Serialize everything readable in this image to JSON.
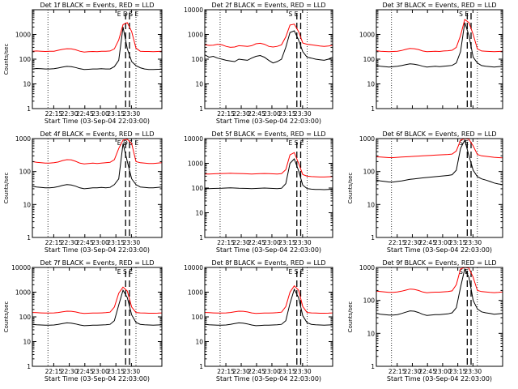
{
  "page": {
    "background": "#ffffff"
  },
  "colors": {
    "events": "#000000",
    "lld": "#ff0000",
    "axis": "#000000"
  },
  "chart_data": [
    {
      "type": "line",
      "title": "Det 1f BLACK = Events, RED = LLD",
      "xlabel": "Start Time (03-Sep-04 22:03:00)",
      "ylabel": "Counts/sec",
      "yscale": "log",
      "ylim": [
        1,
        10000
      ],
      "xlim": [
        0,
        1000
      ],
      "xtick_labels": [
        "22:15",
        "22:30",
        "22:45",
        "23:00",
        "23:15",
        "23:30"
      ],
      "ytick_labels": [
        "1",
        "10",
        "100",
        "1000"
      ],
      "markers": [
        "E",
        "D",
        "S",
        "E"
      ],
      "grid": false,
      "series": [
        {
          "name": "BLACK = Events",
          "color": "#000000",
          "values": [
            40,
            42,
            41,
            40,
            40,
            41,
            44,
            48,
            51,
            50,
            46,
            41,
            38,
            39,
            40,
            40,
            41,
            40,
            40,
            50,
            90,
            2000,
            260,
            80,
            55,
            45,
            40,
            38,
            38,
            39,
            39
          ]
        },
        {
          "name": "RED = LLD",
          "color": "#ff0000",
          "values": [
            210,
            215,
            210,
            205,
            210,
            210,
            230,
            250,
            265,
            260,
            240,
            210,
            195,
            200,
            205,
            200,
            210,
            210,
            215,
            260,
            600,
            2500,
            3000,
            1300,
            280,
            210,
            205,
            205,
            200,
            205,
            210
          ]
        }
      ]
    },
    {
      "type": "line",
      "title": "Det 2f BLACK = Events, RED = LLD",
      "xlabel": "Start Time (03-Sep-04 22:03:00)",
      "ylabel": "",
      "yscale": "log",
      "ylim": [
        1,
        10000
      ],
      "xlim": [
        0,
        1000
      ],
      "xtick_labels": [
        "22:15",
        "22:30",
        "22:45",
        "23:00",
        "23:15",
        "23:30"
      ],
      "ytick_labels": [
        "1",
        "10",
        "100",
        "1000",
        "10000"
      ],
      "markers": [
        "S",
        "E"
      ],
      "grid": false,
      "series": [
        {
          "name": "BLACK = Events",
          "color": "#000000",
          "values": [
            150,
            120,
            130,
            110,
            100,
            90,
            85,
            80,
            100,
            95,
            90,
            110,
            130,
            140,
            120,
            90,
            70,
            80,
            100,
            300,
            1200,
            1400,
            600,
            200,
            120,
            110,
            100,
            95,
            90,
            100,
            120
          ]
        },
        {
          "name": "RED = LLD",
          "color": "#ff0000",
          "values": [
            380,
            360,
            370,
            400,
            380,
            330,
            300,
            310,
            350,
            340,
            330,
            350,
            420,
            440,
            400,
            330,
            310,
            330,
            380,
            800,
            2400,
            2600,
            1300,
            450,
            400,
            380,
            360,
            340,
            330,
            340,
            360
          ]
        }
      ]
    },
    {
      "type": "line",
      "title": "Det 3f BLACK = Events, RED = LLD",
      "xlabel": "",
      "ylabel": "",
      "yscale": "log",
      "ylim": [
        1,
        10000
      ],
      "xlim": [
        0,
        1000
      ],
      "xtick_labels": [],
      "ytick_labels": [
        "1",
        "10",
        "100",
        "1000"
      ],
      "markers": [
        "S",
        "E"
      ],
      "grid": false,
      "series": [
        {
          "name": "BLACK = Events",
          "color": "#000000",
          "values": [
            55,
            52,
            50,
            48,
            50,
            52,
            55,
            60,
            65,
            62,
            58,
            52,
            48,
            50,
            52,
            50,
            52,
            54,
            56,
            70,
            200,
            3000,
            900,
            120,
            70,
            55,
            52,
            50,
            48,
            50,
            52
          ]
        },
        {
          "name": "RED = LLD",
          "color": "#ff0000",
          "values": [
            220,
            210,
            205,
            200,
            205,
            210,
            225,
            250,
            270,
            265,
            245,
            215,
            200,
            205,
            210,
            205,
            215,
            220,
            230,
            300,
            900,
            4000,
            3000,
            1000,
            260,
            215,
            210,
            205,
            200,
            205,
            210
          ]
        }
      ]
    },
    {
      "type": "line",
      "title": "Det 4f BLACK = Events, RED = LLD",
      "xlabel": "Start Time (03-Sep-04 22:03:00)",
      "ylabel": "Counts/sec",
      "yscale": "log",
      "ylim": [
        1,
        1000
      ],
      "xlim": [
        0,
        1000
      ],
      "xtick_labels": [
        "22:15",
        "22:30",
        "22:45",
        "23:00",
        "23:15",
        "23:30"
      ],
      "ytick_labels": [
        "1",
        "10",
        "100",
        "1000"
      ],
      "markers": [
        "E",
        "D",
        "S",
        "E"
      ],
      "grid": false,
      "series": [
        {
          "name": "BLACK = Events",
          "color": "#000000",
          "values": [
            36,
            34,
            33,
            32,
            32,
            33,
            35,
            38,
            40,
            39,
            36,
            32,
            30,
            31,
            32,
            32,
            33,
            32,
            33,
            40,
            60,
            700,
            200,
            60,
            40,
            34,
            33,
            32,
            32,
            33,
            34
          ]
        },
        {
          "name": "RED = LLD",
          "color": "#ff0000",
          "values": [
            200,
            190,
            185,
            180,
            180,
            185,
            195,
            215,
            230,
            225,
            205,
            180,
            170,
            175,
            180,
            175,
            180,
            185,
            190,
            230,
            500,
            900,
            950,
            700,
            200,
            185,
            180,
            175,
            175,
            180,
            185
          ]
        }
      ]
    },
    {
      "type": "line",
      "title": "Det 5f BLACK = Events, RED = LLD",
      "xlabel": "Start Time (03-Sep-04 22:03:00)",
      "ylabel": "",
      "yscale": "log",
      "ylim": [
        1,
        10000
      ],
      "xlim": [
        0,
        1000
      ],
      "xtick_labels": [
        "22:15",
        "22:30",
        "22:45",
        "23:00",
        "23:15",
        "23:30"
      ],
      "ytick_labels": [
        "1",
        "10",
        "100",
        "1000",
        "10000"
      ],
      "markers": [
        "E",
        "S",
        "E"
      ],
      "grid": false,
      "series": [
        {
          "name": "BLACK = Events",
          "color": "#000000",
          "values": [
            95,
            95,
            96,
            97,
            98,
            100,
            102,
            100,
            98,
            97,
            96,
            95,
            96,
            98,
            100,
            98,
            96,
            95,
            98,
            150,
            1000,
            1500,
            500,
            130,
            95,
            90,
            88,
            87,
            86,
            88,
            90
          ]
        },
        {
          "name": "RED = LLD",
          "color": "#ff0000",
          "values": [
            370,
            370,
            375,
            380,
            385,
            390,
            395,
            390,
            385,
            380,
            375,
            370,
            375,
            380,
            385,
            380,
            375,
            370,
            380,
            550,
            2200,
            2700,
            1000,
            350,
            300,
            290,
            285,
            280,
            280,
            285,
            290
          ]
        }
      ]
    },
    {
      "type": "line",
      "title": "Det 6f BLACK = Events, RED = LLD",
      "xlabel": "Start Time (03-Sep-04 22:03:00)",
      "ylabel": "Counts/sec",
      "yscale": "log",
      "ylim": [
        1,
        1000
      ],
      "xlim": [
        0,
        1000
      ],
      "xtick_labels": [
        "22:15",
        "22:30",
        "22:45",
        "23:00",
        "23:15",
        "23:30"
      ],
      "ytick_labels": [
        "1",
        "10",
        "100",
        "1000"
      ],
      "markers": [
        "S",
        "E"
      ],
      "grid": false,
      "series": [
        {
          "name": "BLACK = Events",
          "color": "#000000",
          "values": [
            55,
            52,
            50,
            48,
            48,
            50,
            52,
            55,
            58,
            60,
            62,
            64,
            66,
            68,
            70,
            72,
            74,
            76,
            80,
            110,
            500,
            900,
            300,
            110,
            70,
            60,
            55,
            50,
            45,
            42,
            40
          ]
        },
        {
          "name": "RED = LLD",
          "color": "#ff0000",
          "values": [
            280,
            275,
            270,
            265,
            265,
            270,
            275,
            280,
            285,
            290,
            295,
            300,
            305,
            310,
            315,
            320,
            325,
            330,
            340,
            420,
            900,
            1000,
            950,
            600,
            330,
            300,
            290,
            280,
            270,
            265,
            260
          ]
        }
      ]
    },
    {
      "type": "line",
      "title": "Det 7f BLACK = Events, RED = LLD",
      "xlabel": "Start Time (03-Sep-04 22:03:00)",
      "ylabel": "Counts/sec",
      "yscale": "log",
      "ylim": [
        1,
        10000
      ],
      "xlim": [
        0,
        1000
      ],
      "xtick_labels": [
        "22:15",
        "22:30",
        "22:45",
        "23:00",
        "23:15",
        "23:30"
      ],
      "ytick_labels": [
        "1",
        "10",
        "100",
        "1000",
        "10000"
      ],
      "markers": [
        "E",
        "S",
        "E"
      ],
      "grid": false,
      "series": [
        {
          "name": "BLACK = Events",
          "color": "#000000",
          "values": [
            50,
            48,
            47,
            46,
            46,
            47,
            50,
            54,
            57,
            56,
            52,
            47,
            44,
            45,
            46,
            46,
            47,
            48,
            50,
            70,
            300,
            1200,
            600,
            120,
            60,
            50,
            48,
            47,
            46,
            47,
            48
          ]
        },
        {
          "name": "RED = LLD",
          "color": "#ff0000",
          "values": [
            150,
            148,
            145,
            143,
            143,
            145,
            150,
            160,
            170,
            168,
            158,
            145,
            138,
            140,
            143,
            143,
            145,
            148,
            155,
            250,
            900,
            1600,
            1100,
            250,
            150,
            145,
            143,
            140,
            140,
            142,
            145
          ]
        }
      ]
    },
    {
      "type": "line",
      "title": "Det 8f BLACK = Events, RED = LLD",
      "xlabel": "Start Time (03-Sep-04 22:03:00)",
      "ylabel": "",
      "yscale": "log",
      "ylim": [
        1,
        10000
      ],
      "xlim": [
        0,
        1000
      ],
      "xtick_labels": [
        "22:15",
        "22:30",
        "22:45",
        "23:00",
        "23:15",
        "23:30"
      ],
      "ytick_labels": [
        "1",
        "10",
        "100",
        "1000",
        "10000"
      ],
      "markers": [
        "E",
        "S",
        "E"
      ],
      "grid": false,
      "series": [
        {
          "name": "BLACK = Events",
          "color": "#000000",
          "values": [
            50,
            48,
            47,
            46,
            46,
            47,
            50,
            54,
            57,
            56,
            52,
            47,
            44,
            45,
            46,
            46,
            47,
            48,
            50,
            70,
            350,
            1300,
            600,
            110,
            58,
            50,
            48,
            47,
            46,
            47,
            48
          ]
        },
        {
          "name": "RED = LLD",
          "color": "#ff0000",
          "values": [
            150,
            148,
            145,
            143,
            143,
            145,
            150,
            160,
            170,
            168,
            158,
            145,
            138,
            140,
            143,
            143,
            145,
            148,
            155,
            260,
            1000,
            1800,
            1200,
            260,
            150,
            145,
            143,
            140,
            140,
            142,
            145
          ]
        }
      ]
    },
    {
      "type": "line",
      "title": "Det 9f BLACK = Events, RED = LLD",
      "xlabel": "Start Time (03-Sep-04 22:03:00)",
      "ylabel": "Counts/sec",
      "yscale": "log",
      "ylim": [
        1,
        1000
      ],
      "xlim": [
        0,
        1000
      ],
      "xtick_labels": [
        "22:15",
        "22:30",
        "22:45",
        "23:00",
        "23:15",
        "23:30"
      ],
      "ytick_labels": [
        "1",
        "10",
        "100",
        "1000"
      ],
      "markers": [
        "S",
        "E"
      ],
      "grid": false,
      "series": [
        {
          "name": "BLACK = Events",
          "color": "#000000",
          "values": [
            40,
            38,
            37,
            36,
            36,
            37,
            40,
            44,
            48,
            47,
            43,
            38,
            35,
            36,
            37,
            37,
            38,
            39,
            42,
            60,
            250,
            900,
            500,
            100,
            55,
            45,
            42,
            40,
            38,
            39,
            40
          ]
        },
        {
          "name": "RED = LLD",
          "color": "#ff0000",
          "values": [
            190,
            185,
            180,
            175,
            175,
            180,
            190,
            205,
            220,
            215,
            200,
            180,
            170,
            175,
            178,
            178,
            182,
            185,
            195,
            300,
            900,
            1000,
            950,
            500,
            200,
            185,
            180,
            175,
            172,
            175,
            180
          ]
        }
      ]
    }
  ]
}
